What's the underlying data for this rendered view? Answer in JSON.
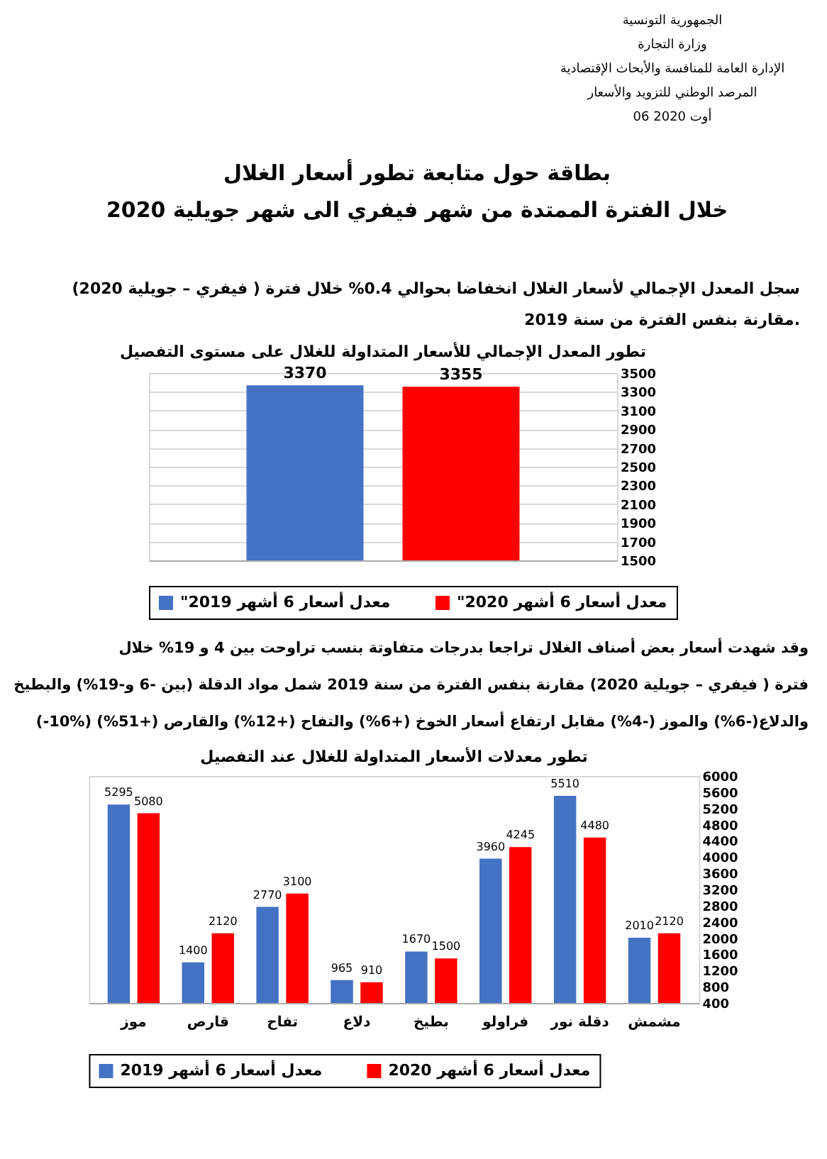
{
  "chart_data": [
    {
      "type": "bar",
      "title": "تطور المعدل الإجمالي للأسعار المتداولة للغلال على مستوى التفصيل",
      "annotations": [
        "الجمهورية التونسية",
        "وزارة التجارة",
        "الإدارة العامة للمنافسة والأبحاث الإقتصادية",
        "المرصد الوطني للتزويد والأسعار",
        "06 أوت 2020",
        "بطاقة حول متابعة تطور أسعار الغلال",
        "خلال الفترة الممتدة من شهر فيفري الى شهر جويلية 2020",
        "سجل المعدل الإجمالي لأسعار الغلال انخفاضا بحوالي 0.4% خلال فترة ( فيفري – جويلية 2020)",
        "مقارنة بنفس الفترة من سنة 2019."
      ],
      "categories": [
        null
      ],
      "series": [
        {
          "name": "\"معدل أسعار 6 أشهر 2019",
          "color": "#4472c4",
          "values": [
            3370
          ]
        },
        {
          "name": "\"معدل أسعار 6 أشهر 2020",
          "color": "#ff0000",
          "values": [
            3355
          ]
        }
      ],
      "ylim": [
        1500,
        3500
      ],
      "yticks": [
        1500,
        1700,
        1900,
        2100,
        2300,
        2500,
        2700,
        2900,
        3100,
        3300,
        3500
      ],
      "grid": "y",
      "legend": "bottom",
      "data_labels": true,
      "tick_labels": "y"
    },
    {
      "type": "bar",
      "title": "تطور معدلات الأسعار المتداولة للغلال عند التفصيل",
      "annotations": [
        "وقد شهدت أسعار بعض أصناف الغلال تراجعا بدرجات متفاوتة بنسب تراوحت بين 4 و 19% خلال",
        "فترة ( فيفري – جويلية 2020) مقارنة بنفس الفترة من سنة 2019 شمل مواد الدقلة (بين -6 و-19%) والبطيخ",
        "(-10%) والدلاع(-6%) والموز (-4%) مقابل ارتفاع أسعار الخوخ (+6%) والتفاح (+12%) والقارص (+51%)"
      ],
      "categories": [
        "موز",
        "قارص",
        "تفاح",
        "دلاع",
        "بطيخ",
        "فراولو",
        "دقلة نور",
        "مشمش"
      ],
      "series": [
        {
          "name": "معدل أسعار 6 أشهر 2019",
          "color": "#4472c4",
          "values": [
            5295,
            1400,
            2770,
            965,
            1670,
            3960,
            5510,
            2010
          ]
        },
        {
          "name": "معدل أسعار 6 أشهر 2020",
          "color": "#ff0000",
          "values": [
            5080,
            2120,
            3100,
            910,
            1500,
            4245,
            4480,
            2120
          ]
        }
      ],
      "ylim": [
        400,
        6000
      ],
      "yticks": [
        400,
        800,
        1200,
        1600,
        2000,
        2400,
        2800,
        3200,
        3600,
        4000,
        4400,
        4800,
        5200,
        5600,
        6000
      ],
      "legend": "bottom",
      "data_labels": true
    }
  ]
}
